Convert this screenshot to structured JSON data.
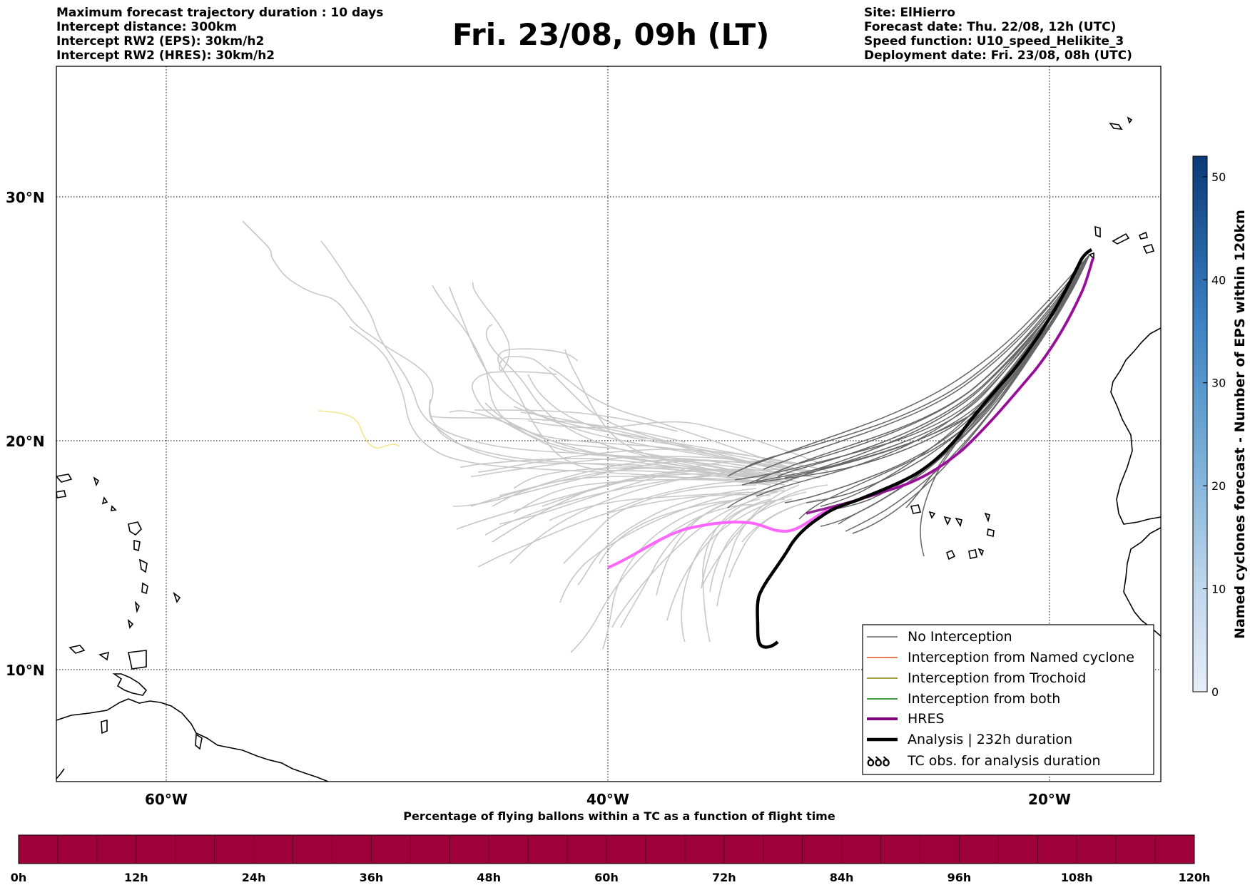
{
  "header": {
    "left_lines": [
      "Maximum forecast trajectory duration : 10 days",
      "Intercept distance: 300km",
      "Intercept RW2 (EPS):  30km/h2",
      "Intercept RW2 (HRES): 30km/h2"
    ],
    "title": "Fri. 23/08, 09h (LT)",
    "right_lines": [
      "Site: ElHierro",
      "Forecast date: Thu. 22/08, 12h (UTC)",
      "Speed function: U10_speed_Helikite_3",
      "Deployment date: Fri. 23/08, 08h (UTC)"
    ]
  },
  "map": {
    "lon_range": [
      -65,
      -15
    ],
    "lat_range": [
      5.5,
      35.3
    ],
    "lat_labels": [
      "30°N",
      "20°N",
      "10°N"
    ],
    "lon_labels": [
      "60°W",
      "40°W",
      "20°W"
    ],
    "colors": {
      "no_interception": "#666666",
      "eps_far": "#c8c8c8",
      "hres": "#ff66ff",
      "hres_legend": "#800080",
      "analysis": "#000000",
      "named_cyclone": "#e0521e",
      "trochoid": "#808000",
      "both": "#007f00",
      "yellow_track": "#f0e68c"
    }
  },
  "legend": {
    "items": [
      {
        "label": "No Interception",
        "icon": "thin-gray-line"
      },
      {
        "label": "Interception from Named cyclone",
        "icon": "thin-orange-line"
      },
      {
        "label": "Interception from Trochoid",
        "icon": "thin-olive-line"
      },
      {
        "label": "Interception from both",
        "icon": "thin-green-line"
      },
      {
        "label": "HRES",
        "icon": "thick-purple-line"
      },
      {
        "label": "Analysis | 232h duration",
        "icon": "thick-black-line"
      },
      {
        "label": "TC obs. for analysis duration",
        "icon": "hurricane-symbol"
      }
    ],
    "tc_symbol": "ꝺꝺꝺ"
  },
  "colorbar_right": {
    "title": "Named cyclones forecast - Number of EPS within 120km",
    "ticks": [
      "0",
      "10",
      "20",
      "30",
      "40",
      "50"
    ],
    "range": [
      0,
      52
    ],
    "color_low": "#e6eef8",
    "color_high": "#0b3a78"
  },
  "colorbar_bottom": {
    "title": "Percentage of flying ballons within a TC as a function of flight time",
    "ticks": [
      "0h",
      "12h",
      "24h",
      "36h",
      "48h",
      "60h",
      "72h",
      "84h",
      "96h",
      "108h",
      "120h"
    ],
    "fill_color": "#9e003a"
  }
}
